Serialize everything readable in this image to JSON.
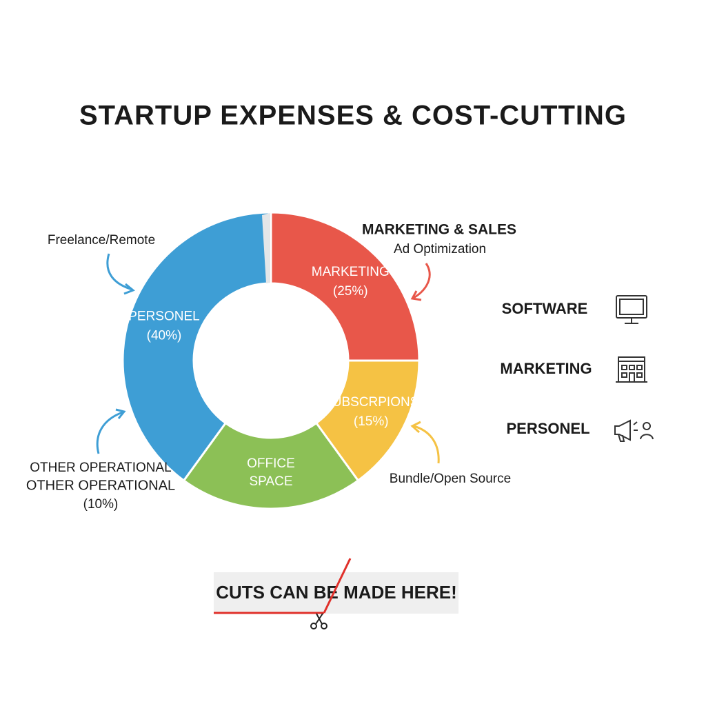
{
  "chart_data": {
    "type": "donut",
    "title": "STARTUP EXPENSES & COST-CUTTING",
    "categories": [
      "MARKETING",
      "SUBSCRPIONS",
      "OFFICE SPACE",
      "PERSONEL"
    ],
    "values": [
      25,
      15,
      20,
      40
    ],
    "value_labels": [
      "(25%)",
      "(15%)",
      null,
      "(40%)"
    ],
    "colors": [
      "#e8574a",
      "#f5c244",
      "#8cc056",
      "#3e9ed5"
    ],
    "annotations": [
      "Freelance/Remote",
      "MARKETING & SALES",
      "Ad Optimization",
      "Bundle/Open Source",
      "OTHER OPERATIONAL",
      "(10%)"
    ],
    "legend": [
      "SOFTWARE",
      "MARKETING",
      "PERSONEL"
    ],
    "callout": "CUTS CAN BE MADE HERE!"
  }
}
